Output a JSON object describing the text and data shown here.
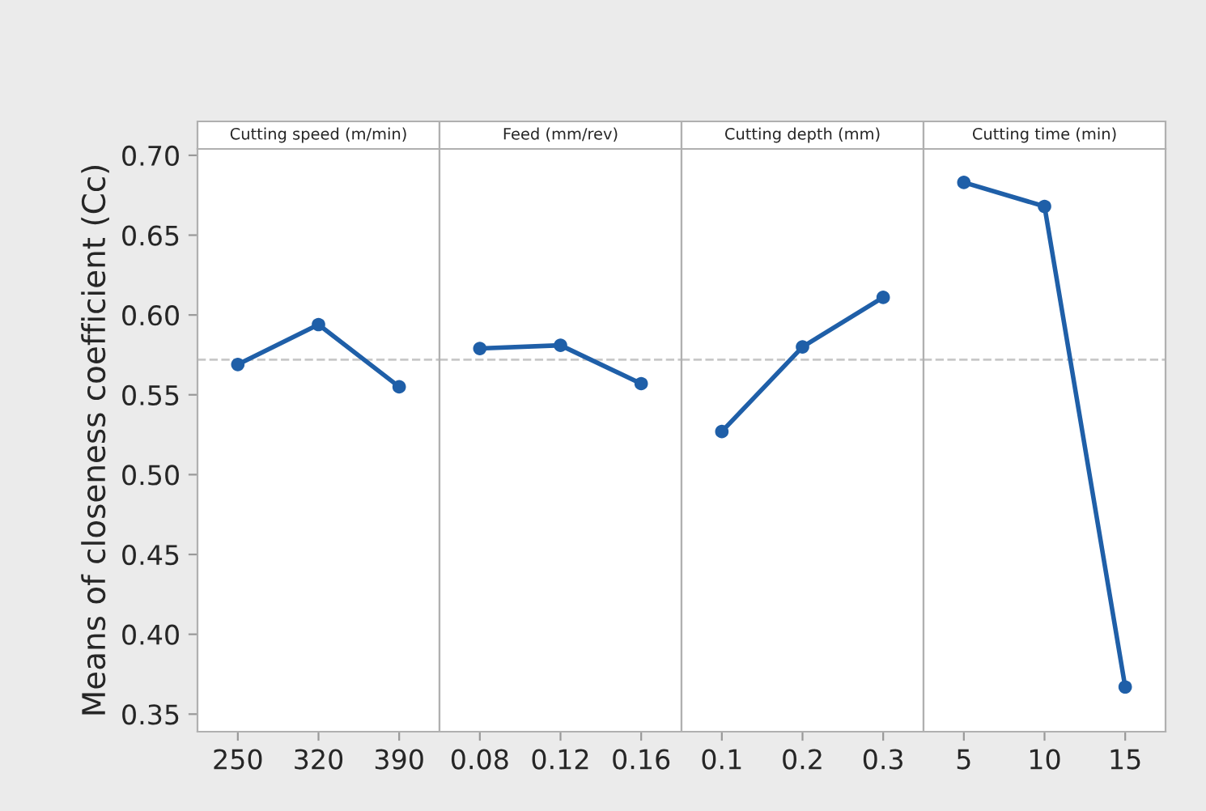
{
  "chart_data": [
    {
      "type": "line",
      "title": "Cutting speed (m/min)",
      "ylabel": "Means of closeness coefficient (Cc)",
      "categories": [
        "250",
        "320",
        "390"
      ],
      "series": [
        {
          "color": "#1f5fa8",
          "values": [
            0.569,
            0.594,
            0.555
          ]
        }
      ],
      "ylim": [
        0.339,
        0.704
      ],
      "yticks": [
        0.35,
        {
          "value": 0.4,
          "label": "0.40"
        },
        0.45,
        {
          "value": 0.5,
          "label": "0.50"
        },
        0.55,
        {
          "value": 0.6,
          "label": "0.60"
        },
        0.65,
        {
          "value": 0.7,
          "label": "0.70"
        }
      ],
      "marker": "circle",
      "line_style": "solid",
      "ref_lines": [
        {
          "axis": "y",
          "value": 0.572,
          "color": "#c8c8c8",
          "line_style": "dashed"
        }
      ]
    },
    {
      "type": "line",
      "title": "Feed (mm/rev)",
      "categories": [
        "0.08",
        "0.12",
        "0.16"
      ],
      "series": [
        {
          "color": "#1f5fa8",
          "values": [
            0.579,
            0.581,
            0.557
          ]
        }
      ],
      "ylim": [
        0.339,
        0.704
      ],
      "yticks": [
        0.35,
        0.4,
        0.45,
        0.5,
        0.55,
        0.6,
        0.65,
        0.7
      ],
      "tick_labels": "x",
      "marker": "circle",
      "line_style": "solid",
      "ref_lines": [
        {
          "axis": "y",
          "value": 0.572,
          "color": "#c8c8c8",
          "line_style": "dashed"
        }
      ]
    },
    {
      "type": "line",
      "title": "Cutting depth (mm)",
      "categories": [
        "0.1",
        "0.2",
        "0.3"
      ],
      "series": [
        {
          "color": "#1f5fa8",
          "values": [
            0.527,
            0.58,
            0.611
          ]
        }
      ],
      "ylim": [
        0.339,
        0.704
      ],
      "yticks": [
        0.35,
        0.4,
        0.45,
        0.5,
        0.55,
        0.6,
        0.65,
        0.7
      ],
      "tick_labels": "x",
      "marker": "circle",
      "line_style": "solid",
      "ref_lines": [
        {
          "axis": "y",
          "value": 0.572,
          "color": "#c8c8c8",
          "line_style": "dashed"
        }
      ]
    },
    {
      "type": "line",
      "title": "Cutting time (min)",
      "categories": [
        "5",
        "10",
        "15"
      ],
      "series": [
        {
          "color": "#1f5fa8",
          "values": [
            0.683,
            0.668,
            0.367
          ]
        }
      ],
      "ylim": [
        0.339,
        0.704
      ],
      "yticks": [
        0.35,
        0.4,
        0.45,
        0.5,
        0.55,
        0.6,
        0.65,
        0.7
      ],
      "tick_labels": "x",
      "marker": "circle",
      "line_style": "solid",
      "ref_lines": [
        {
          "axis": "y",
          "value": 0.572,
          "color": "#c8c8c8",
          "line_style": "dashed"
        }
      ]
    }
  ]
}
